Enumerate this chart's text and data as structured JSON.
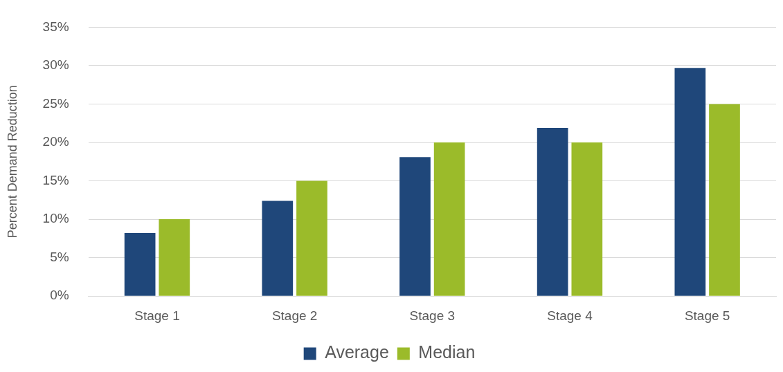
{
  "chart_data": {
    "type": "bar",
    "ylabel": "Percent Demand Reduction",
    "categories": [
      "Stage 1",
      "Stage 2",
      "Stage 3",
      "Stage 4",
      "Stage 5"
    ],
    "series": [
      {
        "name": "Average",
        "color": "#1f477a",
        "values": [
          8.2,
          12.4,
          18.1,
          21.9,
          29.7
        ]
      },
      {
        "name": "Median",
        "color": "#9bbb2a",
        "values": [
          10,
          15,
          20,
          20,
          25
        ]
      }
    ],
    "ylim": [
      0,
      35
    ],
    "yticks": [
      {
        "value": 0,
        "label": "0%"
      },
      {
        "value": 5,
        "label": "5%"
      },
      {
        "value": 10,
        "label": "10%"
      },
      {
        "value": 15,
        "label": "15%"
      },
      {
        "value": 20,
        "label": "20%"
      },
      {
        "value": 25,
        "label": "25%"
      },
      {
        "value": 30,
        "label": "30%"
      },
      {
        "value": 35,
        "label": "35%"
      }
    ],
    "grid": "y",
    "legend": "bottom"
  }
}
